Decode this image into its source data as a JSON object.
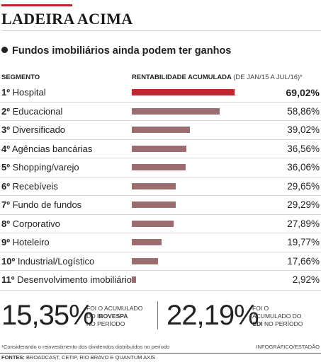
{
  "header": {
    "title": "LADEIRA ACIMA",
    "subtitle": "Fundos imobiliários ainda podem ter ganhos"
  },
  "chart_data": {
    "type": "bar",
    "orientation": "horizontal",
    "columns": {
      "segment": "SEGMENTO",
      "value": "RENTABILIDADE ACUMULADA",
      "value_note": "(DE JAN/15 A JUL/16)*"
    },
    "rows": [
      {
        "rank": "1º",
        "label": "Hospital",
        "value": 69.02,
        "display": "69,02%",
        "highlight": true
      },
      {
        "rank": "2º",
        "label": "Educacional",
        "value": 58.86,
        "display": "58,86%"
      },
      {
        "rank": "3º",
        "label": "Diversificado",
        "value": 39.02,
        "display": "39,02%"
      },
      {
        "rank": "4º",
        "label": "Agências bancárias",
        "value": 36.56,
        "display": "36,56%"
      },
      {
        "rank": "5º",
        "label": "Shopping/varejo",
        "value": 36.06,
        "display": "36,06%"
      },
      {
        "rank": "6º",
        "label": "Recebíveis",
        "value": 29.65,
        "display": "29,65%"
      },
      {
        "rank": "7º",
        "label": "Fundo de fundos",
        "value": 29.29,
        "display": "29,29%"
      },
      {
        "rank": "8º",
        "label": "Corporativo",
        "value": 27.89,
        "display": "27,89%"
      },
      {
        "rank": "9º",
        "label": "Hoteleiro",
        "value": 19.77,
        "display": "19,77%"
      },
      {
        "rank": "10º",
        "label": "Industrial/Logístico",
        "value": 17.66,
        "display": "17,66%"
      },
      {
        "rank": "11º",
        "label": "Desenvolvimento imobiliário",
        "value": 2.92,
        "display": "2,92%"
      }
    ],
    "colors": {
      "highlight": "#c0262d",
      "bar": "#9b6d6f"
    }
  },
  "stats": {
    "ibovespa": {
      "value": "15,35",
      "unit": "%",
      "line1": "FOI O ACUMULADO",
      "line2_pre": "DO",
      "line2_bold": "IBOVESPA",
      "line3": "NO PERÍODO"
    },
    "cdi": {
      "value": "22,19",
      "unit": "%",
      "line1": "FOI O",
      "line2": "ACUMULADO DO",
      "line3_bold": "CDI",
      "line3_post": "NO PERÍODO"
    }
  },
  "footer": {
    "footnote": "*Considerando o reinvestimento dos dividendos distribuídos no período",
    "sources_label": "FONTES:",
    "sources": "BROADCAST, CETIP, RIO BRAVO E QUANTUM AXIS",
    "credit": "INFOGRÁFICO/ESTADÃO"
  }
}
